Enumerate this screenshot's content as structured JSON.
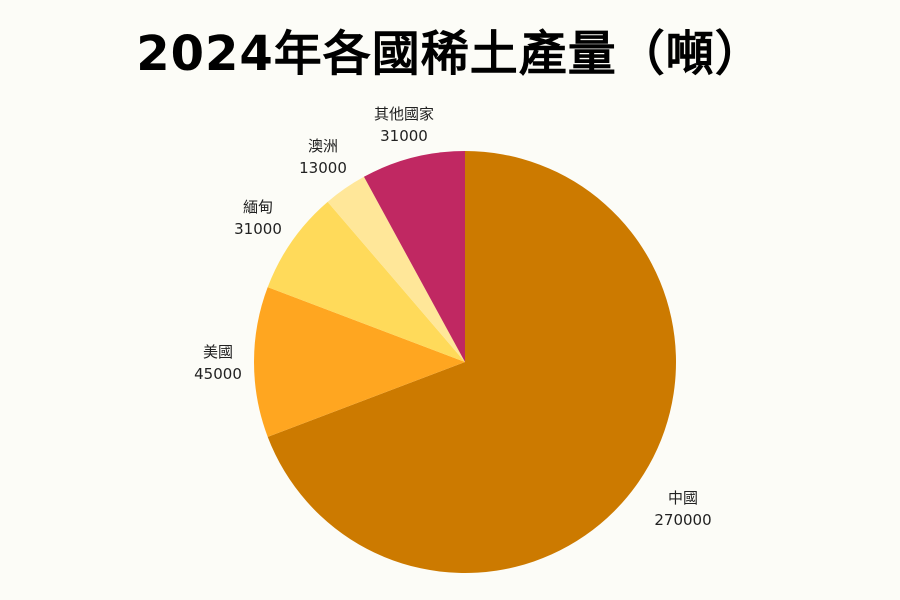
{
  "title": "2024年各國稀土產量（噸）",
  "chart_data": {
    "type": "pie",
    "title": "2024年各國稀土產量（噸）",
    "categories": [
      "中國",
      "美國",
      "緬甸",
      "澳洲",
      "其他國家"
    ],
    "values": [
      270000,
      45000,
      31000,
      13000,
      31000
    ],
    "colors": [
      "#cc7a00",
      "#ffa620",
      "#ffda5a",
      "#ffe799",
      "#c02862"
    ],
    "start_angle": "12 o'clock, clockwise",
    "legend": "none (labels outside slices)"
  },
  "labels": [
    {
      "name": "中國",
      "value": "270000"
    },
    {
      "name": "美國",
      "value": "45000"
    },
    {
      "name": "緬甸",
      "value": "31000"
    },
    {
      "name": "澳洲",
      "value": "13000"
    },
    {
      "name": "其他國家",
      "value": "31000"
    }
  ]
}
